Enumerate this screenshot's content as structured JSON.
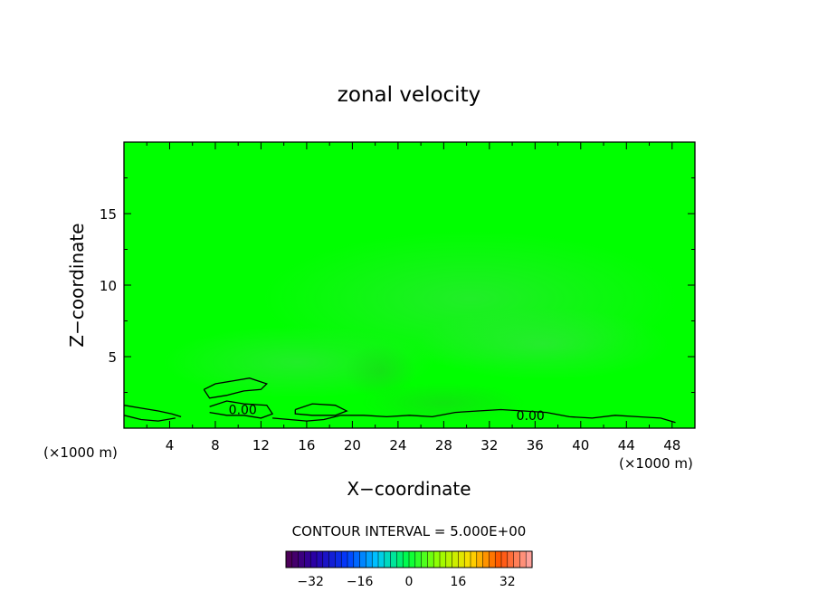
{
  "chart_data": {
    "type": "heatmap",
    "title": "zonal velocity",
    "xlabel": "X−coordinate",
    "ylabel": "Z−coordinate",
    "x_unit_left": "(×1000 m)",
    "x_unit_right": "(×1000 m)",
    "xlim": [
      0,
      50
    ],
    "ylim": [
      0,
      20
    ],
    "x_ticks": [
      4,
      8,
      12,
      16,
      20,
      24,
      28,
      32,
      36,
      40,
      44,
      48
    ],
    "y_ticks": [
      5,
      10,
      15
    ],
    "contour_interval_text": "CONTOUR INTERVAL = 5.000E+00",
    "contour_label": "0.00",
    "colorbar": {
      "min": -40,
      "max": 40,
      "ticks": [
        -32,
        -16,
        0,
        16,
        32
      ],
      "tick_labels": [
        "−32",
        "−16",
        "0",
        "16",
        "32"
      ]
    },
    "field_description_value": 0,
    "field_colors": {
      "background": "#00ff00",
      "light_patch": "#33ee44",
      "dark_patch": "#22dd22"
    },
    "zero_contours": [
      [
        [
          0,
          1.6
        ],
        [
          1.5,
          1.4
        ],
        [
          3,
          1.2
        ],
        [
          4.2,
          1.0
        ],
        [
          5,
          0.8
        ]
      ],
      [
        [
          0,
          0.9
        ],
        [
          1.5,
          0.6
        ],
        [
          3,
          0.5
        ],
        [
          4.5,
          0.7
        ]
      ],
      [
        [
          7,
          2.7
        ],
        [
          8,
          3.1
        ],
        [
          9.5,
          3.3
        ],
        [
          11,
          3.5
        ],
        [
          12.5,
          3.1
        ],
        [
          12,
          2.7
        ],
        [
          10.5,
          2.6
        ],
        [
          9,
          2.3
        ],
        [
          7.5,
          2.1
        ],
        [
          7,
          2.7
        ]
      ],
      [
        [
          7.5,
          1.5
        ],
        [
          9,
          1.9
        ],
        [
          10.5,
          1.7
        ],
        [
          12.5,
          1.6
        ],
        [
          13,
          1.0
        ],
        [
          12,
          0.7
        ],
        [
          10.5,
          0.9
        ],
        [
          9,
          0.9
        ],
        [
          7.5,
          1.1
        ]
      ],
      [
        [
          15,
          1.3
        ],
        [
          16.5,
          1.7
        ],
        [
          18.5,
          1.6
        ],
        [
          19.5,
          1.2
        ],
        [
          18.5,
          0.9
        ],
        [
          16.5,
          0.9
        ],
        [
          15,
          1.0
        ],
        [
          15,
          1.3
        ]
      ],
      [
        [
          13,
          0.7
        ],
        [
          14.5,
          0.6
        ],
        [
          16,
          0.5
        ],
        [
          17.5,
          0.6
        ],
        [
          19,
          0.9
        ],
        [
          21,
          0.9
        ],
        [
          23,
          0.8
        ],
        [
          25,
          0.9
        ],
        [
          27,
          0.8
        ],
        [
          29,
          1.1
        ],
        [
          31,
          1.2
        ],
        [
          33,
          1.3
        ],
        [
          35,
          1.2
        ],
        [
          37,
          1.1
        ],
        [
          39,
          0.8
        ],
        [
          41,
          0.7
        ],
        [
          43,
          0.9
        ],
        [
          45,
          0.8
        ],
        [
          47,
          0.7
        ],
        [
          48.3,
          0.4
        ]
      ]
    ]
  }
}
